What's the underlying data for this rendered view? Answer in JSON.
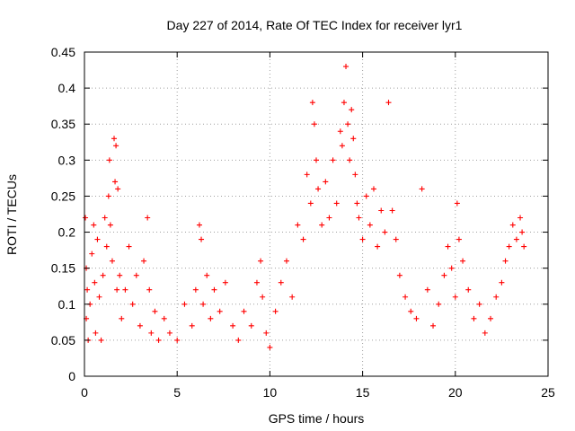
{
  "chart_data": {
    "type": "scatter",
    "title": "Day 227 of 2014, Rate Of TEC Index for receiver lyr1",
    "xlabel": "GPS time / hours",
    "ylabel": "ROTI / TECUs",
    "xlim": [
      0,
      25
    ],
    "ylim": [
      0,
      0.45
    ],
    "xticks": [
      0,
      5,
      10,
      15,
      20,
      25
    ],
    "yticks": [
      0,
      0.05,
      0.1,
      0.15,
      0.2,
      0.25,
      0.3,
      0.35,
      0.4,
      0.45
    ],
    "xtick_labels": [
      "0",
      "5",
      "10",
      "15",
      "20",
      "25"
    ],
    "ytick_labels": [
      "0",
      "0.05",
      "0.1",
      "0.15",
      "0.2",
      "0.25",
      "0.3",
      "0.35",
      "0.4",
      "0.45"
    ],
    "grid": true,
    "marker": "+",
    "color": "#ff0000",
    "series": [
      {
        "x": [
          0.05,
          0.1,
          0.1,
          0.15,
          0.2,
          0.3,
          0.4,
          0.5,
          0.55,
          0.6,
          0.7,
          0.8,
          0.9,
          1.0,
          1.1,
          1.2,
          1.3,
          1.35,
          1.4,
          1.5,
          1.6,
          1.65,
          1.7,
          1.75,
          1.8,
          1.9,
          2.0,
          2.2,
          2.4,
          2.6,
          2.8,
          3.0,
          3.2,
          3.4,
          3.5,
          3.6,
          3.8,
          4.0,
          4.3,
          4.6,
          5.0,
          5.4,
          5.8,
          6.0,
          6.2,
          6.3,
          6.4,
          6.6,
          6.8,
          7.0,
          7.3,
          7.6,
          8.0,
          8.3,
          8.6,
          9.0,
          9.3,
          9.5,
          9.6,
          9.8,
          10.0,
          10.3,
          10.6,
          10.9,
          11.2,
          11.5,
          11.8,
          12.0,
          12.2,
          12.3,
          12.4,
          12.5,
          12.6,
          12.8,
          13.0,
          13.2,
          13.4,
          13.6,
          13.8,
          13.9,
          14.0,
          14.1,
          14.2,
          14.3,
          14.4,
          14.5,
          14.6,
          14.7,
          14.8,
          15.0,
          15.2,
          15.4,
          15.6,
          15.8,
          16.0,
          16.2,
          16.4,
          16.6,
          16.8,
          17.0,
          17.3,
          17.6,
          17.9,
          18.2,
          18.5,
          18.8,
          19.1,
          19.4,
          19.6,
          19.8,
          20.0,
          20.1,
          20.2,
          20.4,
          20.7,
          21.0,
          21.3,
          21.6,
          21.9,
          22.2,
          22.5,
          22.7,
          22.9,
          23.1,
          23.3,
          23.5,
          23.6,
          23.7
        ],
        "y": [
          0.22,
          0.15,
          0.08,
          0.12,
          0.05,
          0.1,
          0.17,
          0.21,
          0.13,
          0.06,
          0.19,
          0.11,
          0.05,
          0.14,
          0.22,
          0.18,
          0.25,
          0.3,
          0.21,
          0.16,
          0.33,
          0.27,
          0.32,
          0.12,
          0.26,
          0.14,
          0.08,
          0.12,
          0.18,
          0.1,
          0.14,
          0.07,
          0.16,
          0.22,
          0.12,
          0.06,
          0.09,
          0.05,
          0.08,
          0.06,
          0.05,
          0.1,
          0.07,
          0.12,
          0.21,
          0.19,
          0.1,
          0.14,
          0.08,
          0.12,
          0.09,
          0.13,
          0.07,
          0.05,
          0.09,
          0.07,
          0.13,
          0.16,
          0.11,
          0.06,
          0.04,
          0.09,
          0.13,
          0.16,
          0.11,
          0.21,
          0.19,
          0.28,
          0.24,
          0.38,
          0.35,
          0.3,
          0.26,
          0.21,
          0.27,
          0.22,
          0.3,
          0.24,
          0.34,
          0.32,
          0.38,
          0.43,
          0.35,
          0.3,
          0.37,
          0.33,
          0.28,
          0.24,
          0.22,
          0.19,
          0.25,
          0.21,
          0.26,
          0.18,
          0.23,
          0.2,
          0.38,
          0.23,
          0.19,
          0.14,
          0.11,
          0.09,
          0.08,
          0.26,
          0.12,
          0.07,
          0.1,
          0.14,
          0.18,
          0.15,
          0.11,
          0.24,
          0.19,
          0.16,
          0.12,
          0.08,
          0.1,
          0.06,
          0.08,
          0.11,
          0.13,
          0.16,
          0.18,
          0.21,
          0.19,
          0.22,
          0.2,
          0.18
        ]
      }
    ]
  }
}
